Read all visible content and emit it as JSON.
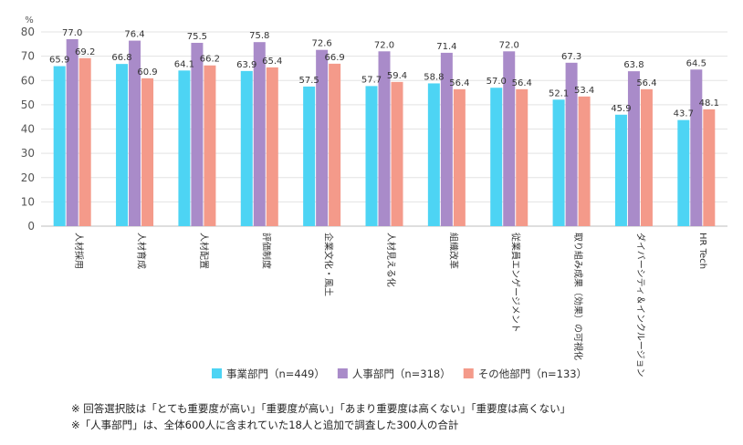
{
  "chart_data": {
    "type": "bar",
    "ylabel": "%",
    "ylim": [
      0,
      80
    ],
    "yticks": [
      0,
      10,
      20,
      30,
      40,
      50,
      60,
      70,
      80
    ],
    "categories": [
      "人材採用",
      "人材育成",
      "人材配置",
      "評価制度",
      "企業文化・風土",
      "人材見える化",
      "組織改革",
      "従業員エンゲージメント",
      "取り組み成果（効果）の可視化",
      "ダイバーシティ＆インクルージョン",
      "HR Tech"
    ],
    "series": [
      {
        "name": "事業部門（n=449）",
        "color": "#4DD4F4",
        "values": [
          65.9,
          66.8,
          64.1,
          63.9,
          57.5,
          57.7,
          58.8,
          57.0,
          52.1,
          45.9,
          43.7
        ]
      },
      {
        "name": "人事部門（n=318）",
        "color": "#A98BC9",
        "values": [
          77.0,
          76.4,
          75.5,
          75.8,
          72.6,
          72.0,
          71.4,
          72.0,
          67.3,
          63.8,
          64.5
        ]
      },
      {
        "name": "その他部門（n=133）",
        "color": "#F49A8A",
        "values": [
          69.2,
          60.9,
          66.2,
          65.4,
          66.9,
          59.4,
          56.4,
          56.4,
          53.4,
          56.4,
          48.1
        ]
      }
    ],
    "legend_position": "bottom",
    "grid": true
  },
  "notes": [
    "※ 回答選択肢は「とても重要度が高い」「重要度が高い」「あまり重要度は高くない」「重要度は高くない」",
    "※「人事部門」は、全体600人に含まれていた18人と追加で調査した300人の合計"
  ]
}
